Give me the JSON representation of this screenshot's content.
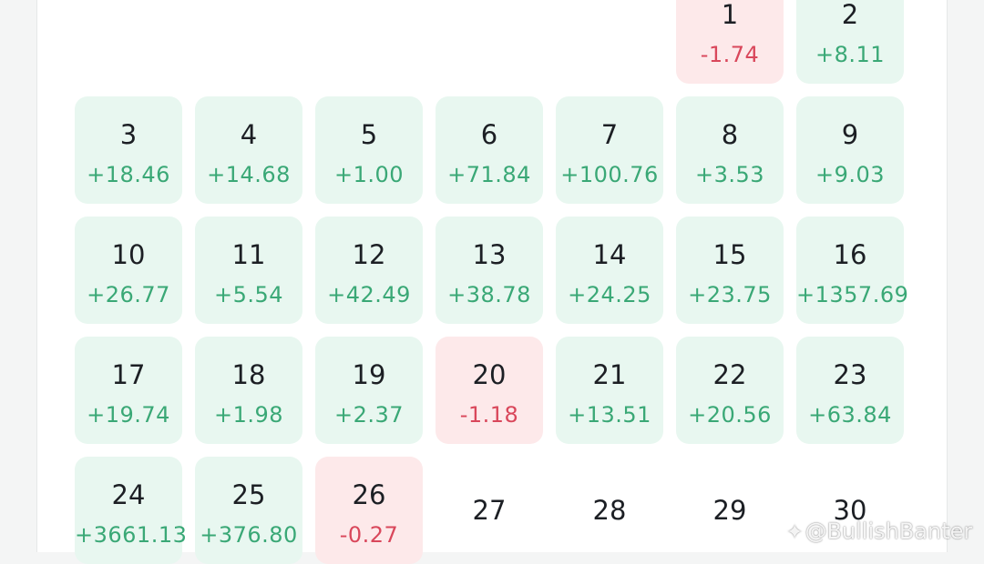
{
  "calendar": {
    "rows": [
      [
        null,
        null,
        null,
        null,
        null,
        {
          "day": "1",
          "pnl": "-1.74",
          "tone": "loss"
        },
        {
          "day": "2",
          "pnl": "+8.11",
          "tone": "gain"
        }
      ],
      [
        {
          "day": "3",
          "pnl": "+18.46",
          "tone": "gain"
        },
        {
          "day": "4",
          "pnl": "+14.68",
          "tone": "gain"
        },
        {
          "day": "5",
          "pnl": "+1.00",
          "tone": "gain"
        },
        {
          "day": "6",
          "pnl": "+71.84",
          "tone": "gain"
        },
        {
          "day": "7",
          "pnl": "+100.76",
          "tone": "gain"
        },
        {
          "day": "8",
          "pnl": "+3.53",
          "tone": "gain"
        },
        {
          "day": "9",
          "pnl": "+9.03",
          "tone": "gain"
        }
      ],
      [
        {
          "day": "10",
          "pnl": "+26.77",
          "tone": "gain"
        },
        {
          "day": "11",
          "pnl": "+5.54",
          "tone": "gain"
        },
        {
          "day": "12",
          "pnl": "+42.49",
          "tone": "gain"
        },
        {
          "day": "13",
          "pnl": "+38.78",
          "tone": "gain"
        },
        {
          "day": "14",
          "pnl": "+24.25",
          "tone": "gain"
        },
        {
          "day": "15",
          "pnl": "+23.75",
          "tone": "gain"
        },
        {
          "day": "16",
          "pnl": "+1357.69",
          "tone": "gain"
        }
      ],
      [
        {
          "day": "17",
          "pnl": "+19.74",
          "tone": "gain"
        },
        {
          "day": "18",
          "pnl": "+1.98",
          "tone": "gain"
        },
        {
          "day": "19",
          "pnl": "+2.37",
          "tone": "gain"
        },
        {
          "day": "20",
          "pnl": "-1.18",
          "tone": "loss"
        },
        {
          "day": "21",
          "pnl": "+13.51",
          "tone": "gain"
        },
        {
          "day": "22",
          "pnl": "+20.56",
          "tone": "gain"
        },
        {
          "day": "23",
          "pnl": "+63.84",
          "tone": "gain"
        }
      ],
      [
        {
          "day": "24",
          "pnl": "+3661.13",
          "tone": "gain"
        },
        {
          "day": "25",
          "pnl": "+376.80",
          "tone": "gain"
        },
        {
          "day": "26",
          "pnl": "-0.27",
          "tone": "loss"
        },
        {
          "day": "27",
          "pnl": null,
          "tone": "empty"
        },
        {
          "day": "28",
          "pnl": null,
          "tone": "empty"
        },
        {
          "day": "29",
          "pnl": null,
          "tone": "empty"
        },
        {
          "day": "30",
          "pnl": null,
          "tone": "empty"
        }
      ]
    ]
  },
  "colors": {
    "gain_bg": "#e8f7f0",
    "gain_text": "#3aa876",
    "loss_bg": "#fde9ea",
    "loss_text": "#d9475b",
    "day_text": "#1c1f24"
  },
  "watermark": {
    "icon": "binance-square-icon",
    "text": "@BullishBanter"
  }
}
